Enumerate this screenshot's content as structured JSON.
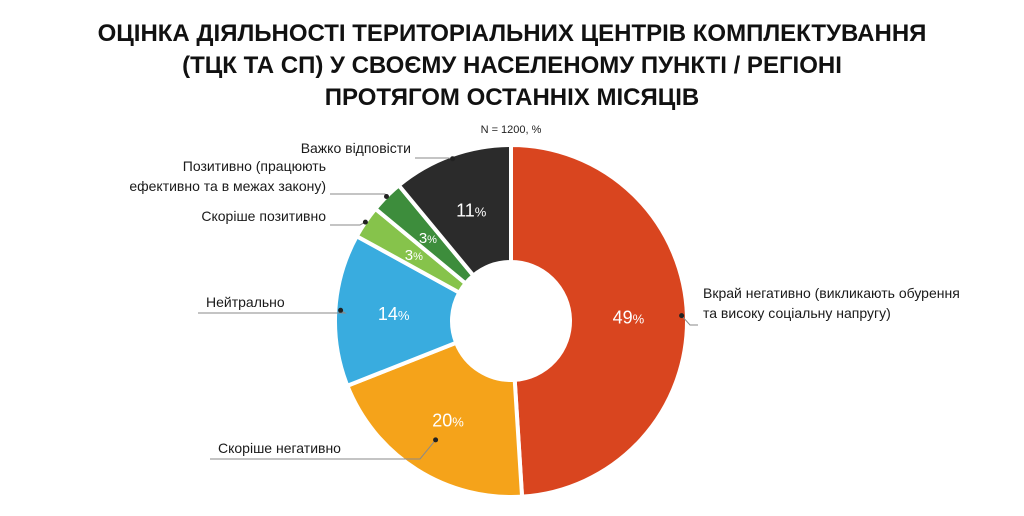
{
  "header": {
    "title_lines": [
      "ОЦІНКА ДІЯЛЬНОСТІ ТЕРИТОРІАЛЬНИХ ЦЕНТРІВ КОМПЛЕКТУВАННЯ",
      "(ТЦК ТА СП) У СВОЄМУ НАСЕЛЕНОМУ ПУНКТІ / РЕГІОНІ",
      "ПРОТЯГОМ ОСТАННІХ МІСЯЦІВ"
    ],
    "note": "N = 1200, %"
  },
  "chart_data": {
    "type": "pie",
    "variant": "donut",
    "title": "ОЦІНКА ДІЯЛЬНОСТІ ТЕРИТОРІАЛЬНИХ ЦЕНТРІВ КОМПЛЕКТУВАННЯ (ТЦК ТА СП) У СВОЄМУ НАСЕЛЕНОМУ ПУНКТІ / РЕГІОНІ ПРОТЯГОМ ОСТАННІХ МІСЯЦІВ",
    "subtitle": "N = 1200, %",
    "unit": "%",
    "start": "12 o'clock",
    "direction": "clockwise",
    "slices": [
      {
        "label": "Вкрай негативно (викликають обурення та високу соціальну напругу)",
        "label_lines": [
          "Вкрай негативно (викликають обурення",
          "та високу соціальну напругу)"
        ],
        "value": 49,
        "color": "#D9451F"
      },
      {
        "label": "Скоріше негативно",
        "label_lines": [
          "Скоріше негативно"
        ],
        "value": 20,
        "color": "#F5A31A"
      },
      {
        "label": "Нейтрально",
        "label_lines": [
          "Нейтрально"
        ],
        "value": 14,
        "color": "#39ACDF"
      },
      {
        "label": "Скоріше позитивно",
        "label_lines": [
          "Скоріше позитивно"
        ],
        "value": 3,
        "color": "#86C34B"
      },
      {
        "label": "Позитивно (працюють ефективно та в межах закону)",
        "label_lines": [
          "Позитивно (працюють",
          "ефективно та в межах закону)"
        ],
        "value": 3,
        "color": "#3D8D3C"
      },
      {
        "label": "Важко відповісти",
        "label_lines": [
          "Важко відповісти"
        ],
        "value": 11,
        "color": "#2B2B2B"
      }
    ]
  }
}
